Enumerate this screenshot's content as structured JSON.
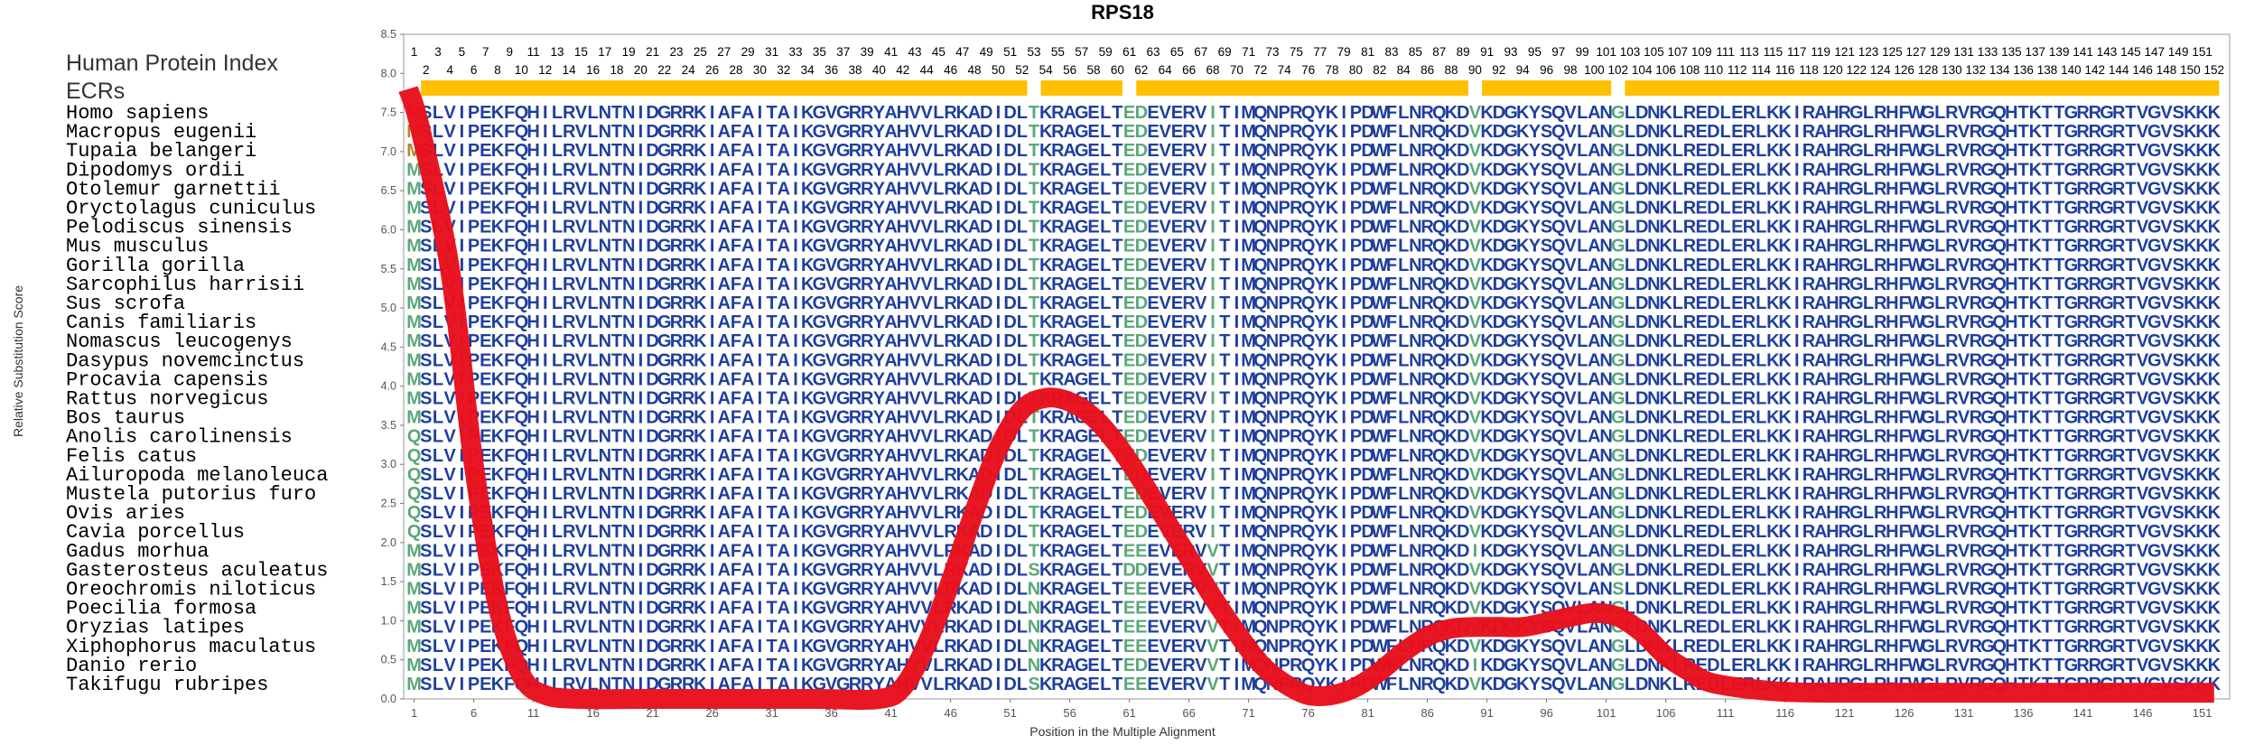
{
  "chart_data": {
    "type": "line",
    "title": "RPS18",
    "xlabel": "Position in the Multiple Alignment",
    "ylabel": "Relative Substitution Score",
    "ylim": [
      0,
      8.5
    ],
    "xlim": [
      1,
      152
    ],
    "y_ticks": [
      "0.0",
      "0.5",
      "1.0",
      "1.5",
      "2.0",
      "2.5",
      "3.0",
      "3.5",
      "4.0",
      "4.5",
      "5.0",
      "5.5",
      "6.0",
      "6.5",
      "7.0",
      "7.5",
      "8.0",
      "8.5"
    ],
    "x_ticks": [
      1,
      6,
      11,
      16,
      21,
      26,
      31,
      36,
      41,
      46,
      51,
      56,
      61,
      66,
      71,
      76,
      81,
      86,
      91,
      96,
      101,
      106,
      111,
      116,
      121,
      126,
      131,
      136,
      141,
      146,
      151
    ],
    "legend_labels": [
      "Human Protein Index",
      "ECRs"
    ],
    "top_numbers_odd": [
      1,
      3,
      5,
      7,
      9,
      11,
      13,
      15,
      17,
      19,
      21,
      23,
      25,
      27,
      29,
      31,
      33,
      35,
      37,
      39,
      41,
      43,
      45,
      47,
      49,
      51,
      53,
      55,
      57,
      59,
      61,
      63,
      65,
      67,
      69,
      71,
      73,
      75,
      77,
      79,
      81,
      83,
      85,
      87,
      89,
      91,
      93,
      95,
      97,
      99,
      101,
      103,
      105,
      107,
      109,
      111,
      113,
      115,
      117,
      119,
      121,
      123,
      125,
      127,
      129,
      131,
      133,
      135,
      137,
      139,
      141,
      143,
      145,
      147,
      149,
      151
    ],
    "top_numbers_even": [
      2,
      4,
      6,
      8,
      10,
      12,
      14,
      16,
      18,
      20,
      22,
      24,
      26,
      28,
      30,
      32,
      34,
      36,
      38,
      40,
      42,
      44,
      46,
      48,
      50,
      52,
      54,
      56,
      58,
      60,
      62,
      64,
      66,
      68,
      70,
      72,
      74,
      76,
      78,
      80,
      82,
      84,
      86,
      88,
      90,
      92,
      94,
      96,
      98,
      100,
      102,
      104,
      106,
      108,
      110,
      112,
      114,
      116,
      118,
      120,
      122,
      124,
      126,
      128,
      130,
      132,
      134,
      136,
      138,
      140,
      142,
      144,
      146,
      148,
      150,
      152
    ],
    "ecr_segments": [
      [
        2,
        52
      ],
      [
        54,
        60
      ],
      [
        62,
        89
      ],
      [
        91,
        101
      ],
      [
        103,
        152
      ]
    ],
    "series": [
      {
        "color": "#e8101c",
        "x": [
          0.5,
          1.5,
          4,
          6,
          8,
          10,
          12,
          15,
          20,
          25,
          30,
          35,
          40,
          42,
          44,
          46,
          48,
          50,
          52,
          54,
          56,
          58,
          60,
          62,
          64,
          66,
          68,
          70,
          72,
          74,
          76,
          78,
          80,
          82,
          84,
          86,
          88,
          90,
          92,
          94,
          96,
          98,
          100,
          102,
          104,
          106,
          108,
          110,
          115,
          120,
          130,
          140,
          150,
          152
        ],
        "y": [
          7.8,
          7.3,
          5.5,
          3.0,
          1.2,
          0.3,
          0.05,
          0.0,
          0.0,
          0.0,
          0.0,
          0.0,
          0.0,
          0.15,
          0.7,
          1.5,
          2.4,
          3.2,
          3.7,
          3.85,
          3.8,
          3.6,
          3.25,
          2.8,
          2.3,
          1.8,
          1.3,
          0.85,
          0.45,
          0.2,
          0.05,
          0.05,
          0.15,
          0.35,
          0.6,
          0.8,
          0.9,
          0.92,
          0.92,
          0.92,
          0.98,
          1.05,
          1.1,
          1.05,
          0.85,
          0.55,
          0.35,
          0.2,
          0.1,
          0.08,
          0.08,
          0.08,
          0.08,
          0.08
        ]
      }
    ]
  },
  "alignment": {
    "rows": [
      {
        "species": "Homo sapiens",
        "seq": "MSLVIPEKFQHILRVLNTNIDGRRKIAFAITAIKGVGRRYAHVVLRKADIDLTKRAGELTEDEVERVITIMQNPRQYKIPDWFLNRQKDVKDGKYSQVLANGLDNKLREDLERLKKIRAHRGLRHFWGLRVRGQHTKTTGRRGRTVGVSKKK"
      },
      {
        "species": "Macropus eugenii",
        "seq": "MSLVIPEKFQHILRVLNTNIDGRRKIAFAITAIKGVGRRYAHVVLRKADIDLTKRAGELTEDEVERVITIMQNPRQYKIPDWFLNRQKDVKDGKYSQVLANGLDNKLREDLERLKKIRAHRGLRHFWGLRVRGQHTKTTGRRGRTVGVSKKK"
      },
      {
        "species": "Tupaia belangeri",
        "seq": "MSLVIPEKFQHILRVLNTNIDGRRKIAFAITAIKGVGRRYAHVVLRKADIDLTKRAGELTEDEVERVITIMQNPRQYKIPDWFLNRQKDVKDGKYSQVLANGLDNKLREDLERLKKIRAHRGLRHFWGLRVRGQHTKTTGRRGRTVGVSKKK"
      },
      {
        "species": "Dipodomys ordii",
        "seq": "MSLVIPEKFQHILRVLNTNIDGRRKIAFAITAIKGVGRRYAHVVLRKADIDLTKRAGELTEDEVERVITIMQNPRQYKIPDWFLNRQKDVKDGKYSQVLANGLDNKLREDLERLKKIRAHRGLRHFWGLRVRGQHTKTTGRRGRTVGVSKKK"
      },
      {
        "species": "Otolemur garnettii",
        "seq": "MSLVIPEKFQHILRVLNTNIDGRRKIAFAITAIKGVGRRYAHVVLRKADIDLTKRAGELTEDEVERVITIMQNPRQYKIPDWFLNRQKDVKDGKYSQVLANGLDNKLREDLERLKKIRAHRGLRHFWGLRVRGQHTKTTGRRGRTVGVSKKK"
      },
      {
        "species": "Oryctolagus cuniculus",
        "seq": "MSLVIPEKFQHILRVLNTNIDGRRKIAFAITAIKGVGRRYAHVVLRKADIDLTKRAGELTEDEVERVITIMQNPRQYKIPDWFLNRQKDVKDGKYSQVLANGLDNKLREDLERLKKIRAHRGLRHFWGLRVRGQHTKTTGRRGRTVGVSKKK"
      },
      {
        "species": "Pelodiscus sinensis",
        "seq": "MSLVIPEKFQHILRVLNTNIDGRRKIAFAITAIKGVGRRYAHVVLRKADIDLTKRAGELTEDEVERVITIMQNPRQYKIPDWFLNRQKDVKDGKYSQVLANGLDNKLREDLERLKKIRAHRGLRHFWGLRVRGQHTKTTGRRGRTVGVSKKK"
      },
      {
        "species": "Mus musculus",
        "seq": "MSLVIPEKFQHILRVLNTNIDGRRKIAFAITAIKGVGRRYAHVVLRKADIDLTKRAGELTEDEVERVITIMQNPRQYKIPDWFLNRQKDVKDGKYSQVLANGLDNKLREDLERLKKIRAHRGLRHFWGLRVRGQHTKTTGRRGRTVGVSKKK"
      },
      {
        "species": "Gorilla gorilla",
        "seq": "MSLVIPEKFQHILRVLNTNIDGRRKIAFAITAIKGVGRRYAHVVLRKADIDLTKRAGELTEDEVERVITIMQNPRQYKIPDWFLNRQKDVKDGKYSQVLANGLDNKLREDLERLKKIRAHRGLRHFWGLRVRGQHTKTTGRRGRTVGVSKKK"
      },
      {
        "species": "Sarcophilus harrisii",
        "seq": "MSLVIPEKFQHILRVLNTNIDGRRKIAFAITAIKGVGRRYAHVVLRKADIDLTKRAGELTEDEVERVITIMQNPRQYKIPDWFLNRQKDVKDGKYSQVLANGLDNKLREDLERLKKIRAHRGLRHFWGLRVRGQHTKTTGRRGRTVGVSKKK"
      },
      {
        "species": "Sus scrofa",
        "seq": "MSLVIPEKFQHILRVLNTNIDGRRKIAFAITAIKGVGRRYAHVVLRKADIDLTKRAGELTEDEVERVITIMQNPRQYKIPDWFLNRQKDVKDGKYSQVLANGLDNKLREDLERLKKIRAHRGLRHFWGLRVRGQHTKTTGRRGRTVGVSKKK"
      },
      {
        "species": "Canis familiaris",
        "seq": "MSLVIPEKFQHILRVLNTNIDGRRKIAFAITAIKGVGRRYAHVVLRKADIDLTKRAGELTEDEVERVITIMQNPRQYKIPDWFLNRQKDVKDGKYSQVLANGLDNKLREDLERLKKIRAHRGLRHFWGLRVRGQHTKTTGRRGRTVGVSKKK"
      },
      {
        "species": "Nomascus leucogenys",
        "seq": "MSLVIPEKFQHILRVLNTNIDGRRKIAFAITAIKGVGRRYAHVVLRKADIDLTKRAGELTEDEVERVITIMQNPRQYKIPDWFLNRQKDVKDGKYSQVLANGLDNKLREDLERLKKIRAHRGLRHFWGLRVRGQHTKTTGRRGRTVGVSKKK"
      },
      {
        "species": "Dasypus novemcinctus",
        "seq": "MSLVIPEKFQHILRVLNTNIDGRRKIAFAITAIKGVGRRYAHVVLRKADIDLTKRAGELTEDEVERVITIMQNPRQYKIPDWFLNRQKDVKDGKYSQVLANGLDNKLREDLERLKKIRAHRGLRHFWGLRVRGQHTKTTGRRGRTVGVSKKK"
      },
      {
        "species": "Procavia capensis",
        "seq": "MSLVIPEKFQHILRVLNTNIDGRRKIAFAITAIKGVGRRYAHVVLRKADIDLTKRAGELTEDEVERVITIMQNPRQYKIPDWFLNRQKDVKDGKYSQVLANGLDNKLREDLERLKKIRAHRGLRHFWGLRVRGQHTKTTGRRGRTVGVSKKK"
      },
      {
        "species": "Rattus norvegicus",
        "seq": "MSLVIPEKFQHILRVLNTNIDGRRKIAFAITAIKGVGRRYAHVVLRKADIDLTKRAGELTEDEVERVITIMQNPRQYKIPDWFLNRQKDVKDGKYSQVLANGLDNKLREDLERLKKIRAHRGLRHFWGLRVRGQHTKTTGRRGRTVGVSKKK"
      },
      {
        "species": "Bos taurus",
        "seq": "MSLVIPEKFQHILRVLNTNIDGRRKIAFAITAIKGVGRRYAHVVLRKADIDLTKRAGELTEDEVERVITIMQNPRQYKIPDWFLNRQKDVKDGKYSQVLANGLDNKLREDLERLKKIRAHRGLRHFWGLRVRGQHTKTTGRRGRTVGVSKKK"
      },
      {
        "species": "Anolis carolinensis",
        "seq": "QSLVIPEKFQHILRVLNTNIDGRRKIAFAITAIKGVGRRYAHVVLRKADIDLTKRAGELTEDEVERVITIMQNPRQYKIPDWFLNRQKDVKDGKYSQVLANGLDNKLREDLERLKKIRAHRGLRHFWGLRVRGQHTKTTGRRGRTVGVSKKK"
      },
      {
        "species": "Felis catus",
        "seq": "QSLVIPEKFQHILRVLNTNIDGRRKIAFAITAIKGVGRRYAHVVLRKADIDLTKRAGELTEDEVERVITIMQNPRQYKIPDWFLNRQKDVKDGKYSQVLANGLDNKLREDLERLKKIRAHRGLRHFWGLRVRGQHTKTTGRRGRTVGVSKKK"
      },
      {
        "species": "Ailuropoda melanoleuca",
        "seq": "QSLVIPEKFQHILRVLNTNIDGRRKIAFAITAIKGVGRRYAHVVLRKADIDLTKRAGELTEDEVERVITIMQNPRQYKIPDWFLNRQKDVKDGKYSQVLANGLDNKLREDLERLKKIRAHRGLRHFWGLRVRGQHTKTTGRRGRTVGVSKKK"
      },
      {
        "species": "Mustela putorius furo",
        "seq": "QSLVIPEKFQHILRVLNTNIDGRRKIAFAITAIKGVGRRYAHVVLRKADIDLTKRAGELTEDEVERVITIMQNPRQYKIPDWFLNRQKDVKDGKYSQVLANGLDNKLREDLERLKKIRAHRGLRHFWGLRVRGQHTKTTGRRGRTVGVSKKK"
      },
      {
        "species": "Ovis aries",
        "seq": "QSLVIPEKFQHILRVLNTNIDGRRKIAFAITAIKGVGRRYAHVVLRKADIDLTKRAGELTEDEVERVITIMQNPRQYKIPDWFLNRQKDVKDGKYSQVLANGLDNKLREDLERLKKIRAHRGLRHFWGLRVRGQHTKTTGRRGRTVGVSKKK"
      },
      {
        "species": "Cavia porcellus",
        "seq": "QSLVIPEKFQHILRVLNTNIDGRRKIAFAITAIKGVGRRYAHVVLRKADIDLTKRAGELTEDEVERVITIMQNPRQYKIPDWFLNRQKDVKDGKYSQVLANGLDNKLREDLERLKKIRAHRGLRHFWGLRVRGQHTKTTGRRGRTVGVSKKK"
      },
      {
        "species": "Gadus morhua",
        "seq": "MSLVIPEKFQHILRVLNTNIDGRRKIAFAITAIKGVGRRYAHVVLRKADIDLTKRAGELTEEEVERVVTIMQNPRQYKIPDWFLNRQKDIKDGKYSQVLANGLDNKLREDLERLKKIRAHRGLRHFWGLRVRGQHTKTTGRRGRTVGVSKKK"
      },
      {
        "species": "Gasterosteus aculeatus",
        "seq": "MSLVIPEKFQHILRVLNTNIDGRRKIAFAITAIKGVGRRYAHVVLRKADIDLSKRAGELTDDEVERVVTIMQNPRQYKIPDWFLNRQKDVKDGKYSQVLANGLDNKLREDLERLKKIRAHRGLRHFWGLRVRGQHTKTTGRRGRTVGVSKKK"
      },
      {
        "species": "Oreochromis niloticus",
        "seq": "MSLVIPEKFQHILRVLNTNIDGRRKIAFAITAIKGVGRRYAHVVLRKADIDLNKRAGELTEEEVERVVTIMQNPRQYKIPDWFLNRQKDVKDGKYSQVLANSLDNKLREDLERLKKIRAHRGLRHFWGLRVRGQHTKTTGRRGRTVGVSKKK"
      },
      {
        "species": "Poecilia formosa",
        "seq": "MSLVIPEKFQHILRVLNTNIDGRRKIAFAITAIKGVGRRYAHVVLRKADIDLNKRAGELTEEEVERVVTIMQNPRQYKIPDWFLNRQKDVKDGKYSQVLANGLDNKLREDLERLKKIRAHRGLRHFWGLRVRGQHTKTTGRRGRTVGVSKKK"
      },
      {
        "species": "Oryzias latipes",
        "seq": "MSLVIPEKFQHILRVLNTNIDGRRKIAFAITAIKGVGRRYAHVVLRKADIDLNKRAGELTEEEVERVVTIMQNPRQYKIPDWFLNRQKDVKDGKYSQVLANGLDNKLREDLERLKKIRAHRGLRHFWGLRVRGQHTKTTGRRGRTVGVSKKK"
      },
      {
        "species": "Xiphophorus maculatus",
        "seq": "MSLVIPEKFQHILRVLNTNIDGRRKIAFAITAIKGVGRRYAHVVLRKADIDLNKRAGELTEEEVERVVTIMQNPRQYKIPDWFLNRQKDVKDGKYSQVLANGLDNKLREDLERLKKIRAHRGLRHFWGLRVRGQHTKTTGRRGRTVGVSKKK"
      },
      {
        "species": "Danio rerio",
        "seq": "MSLVIPEKFQHILRVLNTNIDGRRKIAFAITAIKGVGRRYAHVVLRKADIDLNKRAGELTEDEVERVVTIMQNPRQYKIPDWFLNRQKDIKDGKYSQVLANGLDNKLREDLERLKKIRAHRGLRHFWGLRVRGQHTKTTGRRGRTVGVSKKK"
      },
      {
        "species": "Takifugu rubripes",
        "seq": "MSLVIPEKFQHILRVLNTNIDGRRKIAFAITAIKGVGRRYAHVVLRKADIDLSKRAGELTEEEVERVVTIMQNPRQYKIPDWFLNRQKDVKDGKYSQVLANGLDNKLREDLERLKKIRAHRGLRHFWGLRVRGQHTKTTGRRGRTVGVSKKK"
      }
    ],
    "colors": {
      "conserved": "#1f3f9e",
      "variable": "#5aa87a",
      "human_first": "#b08a20",
      "ecr_bar": "#ffc000",
      "curve": "#e8101c"
    }
  }
}
